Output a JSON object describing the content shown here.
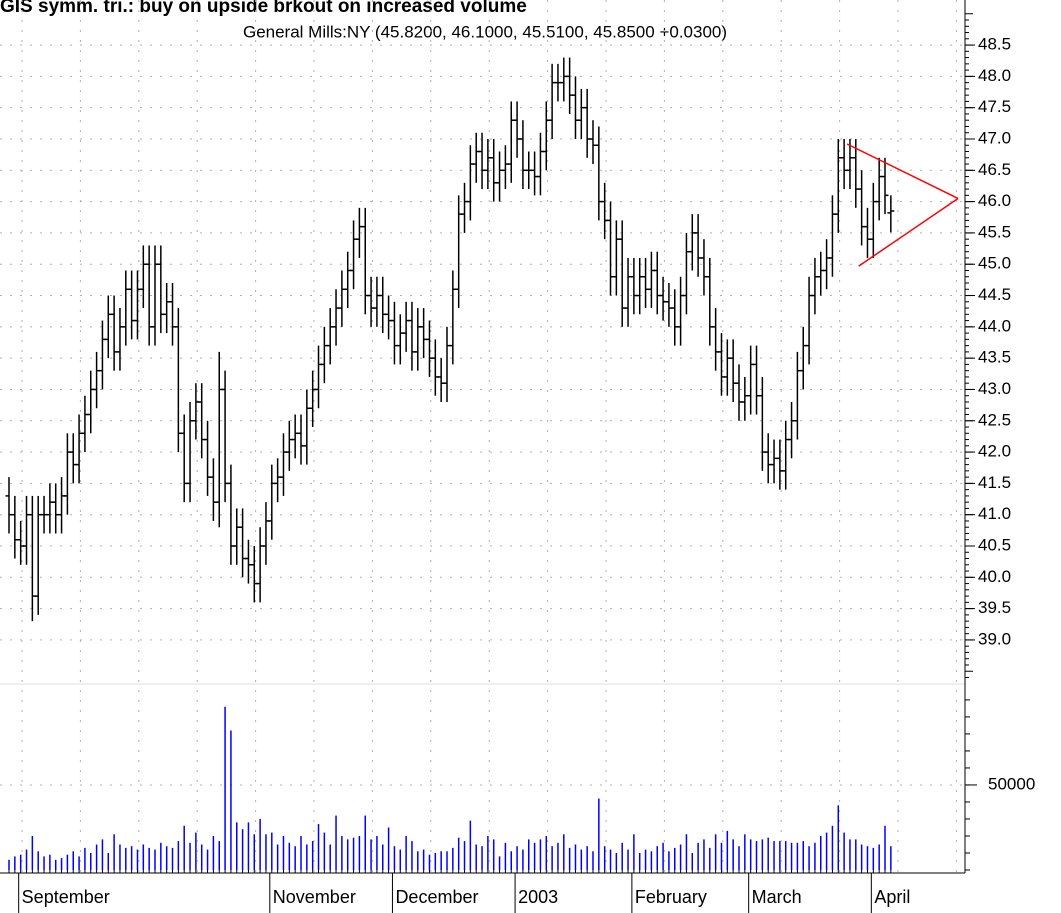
{
  "chart_data": {
    "type": "ohlc",
    "title": "GIS symm. tri.: buy on upside brkout on increased volume",
    "subtitle": "General Mills:NY (45.8200, 46.1000, 45.5100, 45.8500 +0.0300)",
    "categories": [
      null,
      null,
      "September",
      null,
      null,
      null,
      null,
      null,
      null,
      null,
      null,
      null,
      null,
      null,
      null,
      null,
      null,
      null,
      null,
      null,
      null,
      null,
      null,
      null,
      null,
      null,
      null,
      null,
      null,
      null,
      null,
      null,
      null,
      null,
      null,
      null,
      null,
      null,
      null,
      null,
      null,
      null,
      null,
      null,
      null,
      "November",
      null,
      null,
      null,
      null,
      null,
      null,
      null,
      null,
      null,
      null,
      null,
      null,
      null,
      null,
      null,
      null,
      null,
      null,
      null,
      null,
      "December",
      null,
      null,
      null,
      null,
      null,
      null,
      null,
      null,
      null,
      null,
      null,
      null,
      null,
      null,
      null,
      null,
      null,
      null,
      null,
      null,
      "2003",
      null,
      null,
      null,
      null,
      null,
      null,
      null,
      null,
      null,
      null,
      null,
      null,
      null,
      null,
      null,
      null,
      null,
      null,
      null,
      "February",
      null,
      null,
      null,
      null,
      null,
      null,
      null,
      null,
      null,
      null,
      null,
      null,
      null,
      null,
      null,
      null,
      null,
      null,
      null,
      "March",
      null,
      null,
      null,
      null,
      null,
      null,
      null,
      null,
      null,
      null,
      null,
      null,
      null,
      null,
      null,
      null,
      null,
      null,
      null,
      null,
      "April",
      null,
      null,
      null
    ],
    "open": [
      41.3,
      41.0,
      40.6,
      40.5,
      41.0,
      39.7,
      41.0,
      41.0,
      41.2,
      41.0,
      41.3,
      42.0,
      41.8,
      42.3,
      42.6,
      43.0,
      43.3,
      43.8,
      44.2,
      43.6,
      44.0,
      44.6,
      44.1,
      44.6,
      45.0,
      44.0,
      45.0,
      44.2,
      44.4,
      44.0,
      42.3,
      41.5,
      42.5,
      42.8,
      42.2,
      41.6,
      41.2,
      43.0,
      41.5,
      40.5,
      40.8,
      40.3,
      40.2,
      39.9,
      40.5,
      40.9,
      41.5,
      41.6,
      42.0,
      42.2,
      42.3,
      42.1,
      42.7,
      43.0,
      43.4,
      43.7,
      44.0,
      44.3,
      44.6,
      44.9,
      45.4,
      45.6,
      44.5,
      44.3,
      44.5,
      44.2,
      44.1,
      43.7,
      43.9,
      44.1,
      43.6,
      44.0,
      43.8,
      43.5,
      43.2,
      43.1,
      43.7,
      44.6,
      45.8,
      46.0,
      46.6,
      46.8,
      46.5,
      46.7,
      46.3,
      46.5,
      46.6,
      47.3,
      47.0,
      46.5,
      46.5,
      46.4,
      46.8,
      47.3,
      47.9,
      47.9,
      48.0,
      47.7,
      47.3,
      47.5,
      47.0,
      46.9,
      46.0,
      45.7,
      44.8,
      45.4,
      44.3,
      44.8,
      44.5,
      44.8,
      44.6,
      44.9,
      44.5,
      44.4,
      44.3,
      44.0,
      44.5,
      45.2,
      45.5,
      45.1,
      44.8,
      44.0,
      43.6,
      43.2,
      43.5,
      43.1,
      42.8,
      42.9,
      43.4,
      42.9,
      42.0,
      41.8,
      41.9,
      41.7,
      42.2,
      42.5,
      43.3,
      43.7,
      44.5,
      44.8,
      44.9,
      45.1,
      45.8,
      46.7,
      46.5,
      46.7,
      46.2,
      45.6,
      45.4,
      46.0,
      46.4,
      45.82
    ],
    "high": [
      41.6,
      41.3,
      40.9,
      41.3,
      41.3,
      41.3,
      41.3,
      41.5,
      41.5,
      41.6,
      42.3,
      42.3,
      42.6,
      42.9,
      43.3,
      43.6,
      44.1,
      44.5,
      44.5,
      44.3,
      44.9,
      44.9,
      44.9,
      45.3,
      45.3,
      45.3,
      45.3,
      44.7,
      44.7,
      44.3,
      42.6,
      42.8,
      43.1,
      43.1,
      42.5,
      41.9,
      43.6,
      43.3,
      41.8,
      41.1,
      41.1,
      40.6,
      40.5,
      40.8,
      41.2,
      41.8,
      41.9,
      42.3,
      42.5,
      42.6,
      42.6,
      43.0,
      43.3,
      43.7,
      44.0,
      44.3,
      44.6,
      44.9,
      45.2,
      45.7,
      45.9,
      45.9,
      44.8,
      44.8,
      44.8,
      44.5,
      44.4,
      44.2,
      44.4,
      44.4,
      44.3,
      44.3,
      44.1,
      43.8,
      43.5,
      44.0,
      44.9,
      46.1,
      46.3,
      46.9,
      47.1,
      47.1,
      47.0,
      47.0,
      46.8,
      46.9,
      47.6,
      47.6,
      47.3,
      46.8,
      46.8,
      47.1,
      47.6,
      48.2,
      48.2,
      48.3,
      48.3,
      48.0,
      47.8,
      47.8,
      47.3,
      47.2,
      46.3,
      46.0,
      45.7,
      45.7,
      45.1,
      45.1,
      45.1,
      45.1,
      45.2,
      45.2,
      44.8,
      44.7,
      44.6,
      44.8,
      45.5,
      45.8,
      45.8,
      45.4,
      45.1,
      44.3,
      43.9,
      43.8,
      43.8,
      43.4,
      43.2,
      43.7,
      43.7,
      43.2,
      42.3,
      42.2,
      42.2,
      42.5,
      42.8,
      43.6,
      44.0,
      44.8,
      45.1,
      45.2,
      45.4,
      46.1,
      47.0,
      47.0,
      47.0,
      47.0,
      46.5,
      45.9,
      46.3,
      46.7,
      46.7,
      46.1
    ],
    "low": [
      40.7,
      40.3,
      40.2,
      40.2,
      39.3,
      39.4,
      40.7,
      40.7,
      40.7,
      40.7,
      41.0,
      41.5,
      41.5,
      42.0,
      42.3,
      42.7,
      43.0,
      43.5,
      43.3,
      43.3,
      43.7,
      43.8,
      43.8,
      44.3,
      43.7,
      43.7,
      43.9,
      43.9,
      43.7,
      42.0,
      41.2,
      41.2,
      42.2,
      41.9,
      41.3,
      40.9,
      40.8,
      41.2,
      40.2,
      40.2,
      40.0,
      39.9,
      39.6,
      39.6,
      40.2,
      40.6,
      41.2,
      41.3,
      41.7,
      41.9,
      41.8,
      41.8,
      42.4,
      42.7,
      43.1,
      43.4,
      43.7,
      44.0,
      44.3,
      44.6,
      45.1,
      44.2,
      44.0,
      44.0,
      43.9,
      43.8,
      43.4,
      43.4,
      43.6,
      43.3,
      43.3,
      43.5,
      43.2,
      42.9,
      42.8,
      42.8,
      43.4,
      44.3,
      45.5,
      45.7,
      46.3,
      46.2,
      46.2,
      46.0,
      46.0,
      46.2,
      46.3,
      46.7,
      46.2,
      46.2,
      46.1,
      46.1,
      46.5,
      47.0,
      47.6,
      47.6,
      47.4,
      47.0,
      47.0,
      46.7,
      46.6,
      45.7,
      45.4,
      44.5,
      44.5,
      44.0,
      44.0,
      44.2,
      44.2,
      44.3,
      44.3,
      44.2,
      44.1,
      44.0,
      43.7,
      43.7,
      44.2,
      44.9,
      44.8,
      44.5,
      43.7,
      43.3,
      42.9,
      42.9,
      42.8,
      42.5,
      42.5,
      42.6,
      42.6,
      41.7,
      41.5,
      41.5,
      41.4,
      41.4,
      41.9,
      42.2,
      43.0,
      43.4,
      44.2,
      44.5,
      44.6,
      44.8,
      45.5,
      46.2,
      46.2,
      45.9,
      45.3,
      45.1,
      45.1,
      45.7,
      45.8,
      45.51
    ],
    "close": [
      41.0,
      40.6,
      40.5,
      41.0,
      39.7,
      41.0,
      41.0,
      41.2,
      41.0,
      41.3,
      42.0,
      41.8,
      42.3,
      42.6,
      43.0,
      43.3,
      43.8,
      44.2,
      43.6,
      44.0,
      44.6,
      44.1,
      44.6,
      45.0,
      44.0,
      45.0,
      44.2,
      44.4,
      44.0,
      42.3,
      41.5,
      42.5,
      42.8,
      42.2,
      41.6,
      41.2,
      43.0,
      41.5,
      40.5,
      40.8,
      40.3,
      40.2,
      39.9,
      40.5,
      40.9,
      41.5,
      41.6,
      42.0,
      42.2,
      42.3,
      42.1,
      42.7,
      43.0,
      43.4,
      43.7,
      44.0,
      44.3,
      44.6,
      44.9,
      45.4,
      45.6,
      44.5,
      44.3,
      44.5,
      44.2,
      44.1,
      43.7,
      43.9,
      44.1,
      43.6,
      44.0,
      43.8,
      43.5,
      43.2,
      43.1,
      43.7,
      44.6,
      45.8,
      46.0,
      46.6,
      46.8,
      46.5,
      46.7,
      46.3,
      46.5,
      46.6,
      47.3,
      47.0,
      46.5,
      46.5,
      46.4,
      46.8,
      47.3,
      47.9,
      47.9,
      48.0,
      47.7,
      47.3,
      47.5,
      47.0,
      46.9,
      46.0,
      45.7,
      44.8,
      45.4,
      44.3,
      44.8,
      44.5,
      44.8,
      44.6,
      44.9,
      44.5,
      44.4,
      44.3,
      44.0,
      44.5,
      45.2,
      45.5,
      45.1,
      44.8,
      44.0,
      43.6,
      43.2,
      43.5,
      43.1,
      42.8,
      42.9,
      43.4,
      42.9,
      42.0,
      41.8,
      41.9,
      41.7,
      42.2,
      42.5,
      43.3,
      43.7,
      44.5,
      44.8,
      44.9,
      45.1,
      45.8,
      46.7,
      46.5,
      46.7,
      46.2,
      45.6,
      45.4,
      46.0,
      46.4,
      46.1,
      45.85
    ],
    "color": "#000000",
    "ylim": [
      38.36,
      49.06
    ],
    "yticks": [
      {
        "value": 39,
        "label": "39.0"
      },
      {
        "value": 39.5,
        "label": "39.5"
      },
      {
        "value": 40,
        "label": "40.0"
      },
      {
        "value": 40.5,
        "label": "40.5"
      },
      {
        "value": 41,
        "label": "41.0"
      },
      {
        "value": 41.5,
        "label": "41.5"
      },
      {
        "value": 42,
        "label": "42.0"
      },
      {
        "value": 42.5,
        "label": "42.5"
      },
      {
        "value": 43,
        "label": "43.0"
      },
      {
        "value": 43.5,
        "label": "43.5"
      },
      {
        "value": 44,
        "label": "44.0"
      },
      {
        "value": 44.5,
        "label": "44.5"
      },
      {
        "value": 45,
        "label": "45.0"
      },
      {
        "value": 45.5,
        "label": "45.5"
      },
      {
        "value": 46,
        "label": "46.0"
      },
      {
        "value": 46.5,
        "label": "46.5"
      },
      {
        "value": 47,
        "label": "47.0"
      },
      {
        "value": 47.5,
        "label": "47.5"
      },
      {
        "value": 48,
        "label": "48.0"
      },
      {
        "value": 48.5,
        "label": "48.5"
      }
    ],
    "grid": true,
    "trendlines": [
      {
        "color": "#ff0000",
        "x": [
          143.5,
          162.5
        ],
        "y": [
          46.92,
          46.05
        ]
      },
      {
        "color": "#ff0000",
        "x": [
          145.5,
          162.5
        ],
        "y": [
          44.97,
          46.05
        ]
      }
    ],
    "volume": {
      "color": "#0000ff",
      "ylim": [
        0,
        107000
      ],
      "yticks": [
        50000
      ],
      "values": [
        6000,
        8000,
        9000,
        12000,
        20000,
        11000,
        8000,
        9000,
        6000,
        7000,
        9000,
        11000,
        8000,
        13000,
        10000,
        15000,
        18000,
        10000,
        21000,
        15000,
        13000,
        14000,
        12000,
        15000,
        13000,
        12000,
        16000,
        14000,
        13000,
        17000,
        26000,
        16000,
        22000,
        15000,
        12000,
        20000,
        17000,
        96000,
        82000,
        28000,
        24000,
        28000,
        21000,
        30000,
        21000,
        22000,
        15000,
        20000,
        16000,
        14000,
        20000,
        15000,
        17000,
        27000,
        22000,
        15000,
        32000,
        20000,
        18000,
        19000,
        20000,
        32000,
        18000,
        20000,
        15000,
        25000,
        14000,
        12000,
        20000,
        17000,
        11000,
        12000,
        9000,
        10000,
        11000,
        11000,
        13000,
        19000,
        17000,
        29000,
        15000,
        14000,
        20000,
        18000,
        8000,
        16000,
        11000,
        14000,
        12000,
        18000,
        16000,
        18000,
        20000,
        14000,
        16000,
        21000,
        13000,
        15000,
        12000,
        14000,
        11000,
        42000,
        14000,
        12000,
        10000,
        16000,
        12000,
        21000,
        10000,
        12000,
        11000,
        14000,
        16000,
        11000,
        13000,
        15000,
        21000,
        10000,
        16000,
        18000,
        13000,
        21000,
        16000,
        23000,
        18000,
        14000,
        21000,
        18000,
        17000,
        18000,
        19000,
        17000,
        17000,
        17000,
        16000,
        16000,
        17000,
        14000,
        16000,
        20000,
        22000,
        26000,
        38000,
        22000,
        18000,
        18000,
        15000,
        14000,
        13000,
        15000,
        26000,
        14000
      ]
    }
  }
}
